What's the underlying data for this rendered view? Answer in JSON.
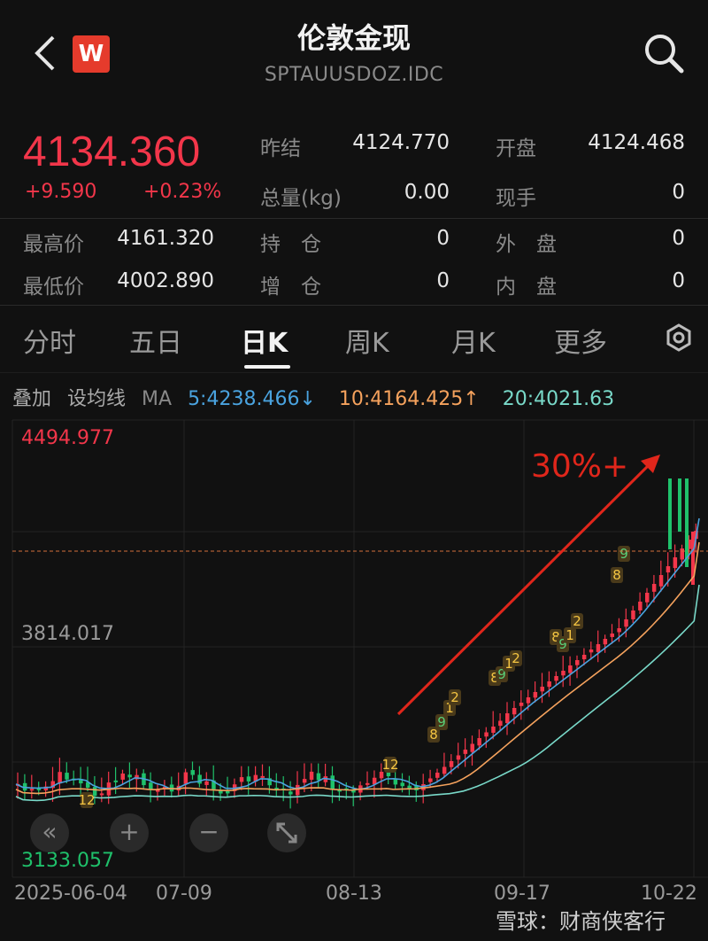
{
  "header": {
    "title": "伦敦金现",
    "subtitle": "SPTAUUSDOZ.IDC",
    "logo_text": "W"
  },
  "quote": {
    "price": "4134.360",
    "change": "+9.590",
    "change_pct": "+0.23%",
    "rows": [
      {
        "l1": "昨结",
        "v1": "4124.770",
        "l2": "开盘",
        "v2": "4124.468"
      },
      {
        "l1": "总量(kg)",
        "v1": "0.00",
        "l2": "现手",
        "v2": "0"
      },
      {
        "l0": "最高价",
        "v0": "4161.320",
        "l1": "持　仓",
        "v1": "0",
        "l2": "外　盘",
        "v2": "0"
      },
      {
        "l0": "最低价",
        "v0": "4002.890",
        "l1": "增　仓",
        "v1": "0",
        "l2": "内　盘",
        "v2": "0"
      }
    ]
  },
  "tabs": [
    "分时",
    "五日",
    "日K",
    "周K",
    "月K",
    "更多"
  ],
  "ma_row": {
    "overlay": "叠加",
    "set_ma": "设均线",
    "ma": "MA",
    "ma5": "5:4238.466↓",
    "ma10": "10:4164.425↑",
    "ma20": "20:4021.63"
  },
  "colors": {
    "up": "#f2364a",
    "down": "#1fc16b",
    "ma5": "#4aa3df",
    "ma10": "#f5a25d",
    "ma20": "#79d9c9",
    "annotation": "#e0261b"
  },
  "chart_data": {
    "type": "candlestick",
    "y_top_label": "4494.977",
    "y_mid_label": "3814.017",
    "y_bottom_label": "3133.057",
    "ylim": [
      3133.057,
      4494.977
    ],
    "x_labels": [
      "2025-06-04",
      "07-09",
      "08-13",
      "09-17",
      "10-22"
    ],
    "annotation": "30%+",
    "current_price_line": 4134.36,
    "count_markers": [
      "12",
      "12",
      "8",
      "9",
      "1",
      "2",
      "8",
      "9",
      "1",
      "2",
      "8",
      "9",
      "1",
      "2",
      "8",
      "9"
    ]
  },
  "controls": {
    "rewind": "«",
    "plus": "+",
    "minus": "−"
  },
  "watermark": "雪球：财商侠客行"
}
